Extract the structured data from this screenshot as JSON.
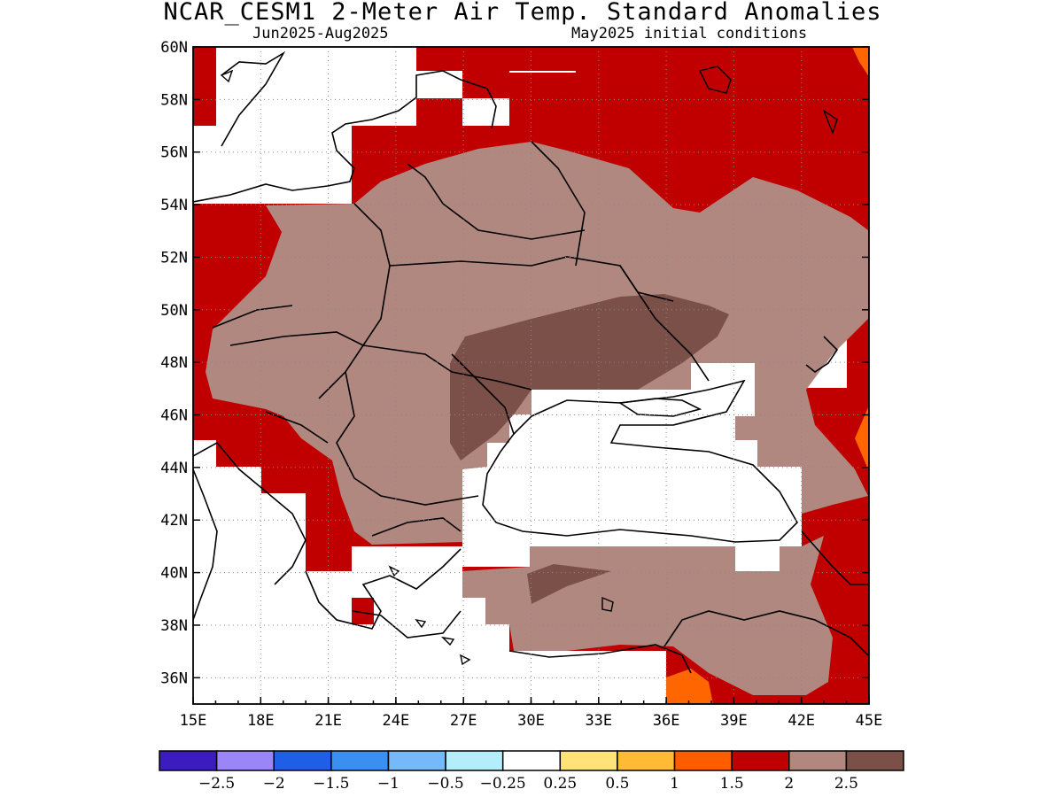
{
  "title": "NCAR_CESM1 2-Meter Air Temp. Standard Anomalies",
  "subtitle_left": "Jun2025-Aug2025",
  "subtitle_right": "May2025 initial conditions",
  "map": {
    "lon_range": [
      15,
      45
    ],
    "lat_range": [
      35,
      60
    ],
    "lon_ticks": [
      "15E",
      "18E",
      "21E",
      "24E",
      "27E",
      "30E",
      "33E",
      "36E",
      "39E",
      "42E",
      "45E"
    ],
    "lat_ticks": [
      "36N",
      "38N",
      "40N",
      "42N",
      "44N",
      "46N",
      "48N",
      "50N",
      "52N",
      "54N",
      "56N",
      "58N",
      "60N"
    ],
    "grid": true,
    "colors": {
      "level_1_5": "#c00000",
      "level_2": "#b08880",
      "level_2_5": "#7a5048",
      "level_1": "#ff6600",
      "background": "#ffffff",
      "coast": "#000000"
    }
  },
  "colorbar": {
    "colors": [
      "#3c1cbe",
      "#9a86f7",
      "#1f5fe8",
      "#3a8ff0",
      "#76b8f8",
      "#b4eefa",
      "#ffffff",
      "#ffe37a",
      "#ffbb33",
      "#ff5c00",
      "#c00000",
      "#b08880",
      "#7a5048"
    ],
    "labels": [
      "-2.5",
      "-2",
      "-1.5",
      "-1",
      "-0.5",
      "-0.25",
      "0.25",
      "0.5",
      "1",
      "1.5",
      "2",
      "2.5"
    ]
  }
}
